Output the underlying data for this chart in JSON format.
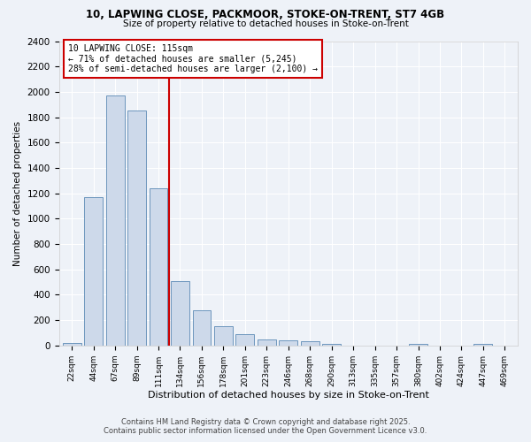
{
  "title1": "10, LAPWING CLOSE, PACKMOOR, STOKE-ON-TRENT, ST7 4GB",
  "title2": "Size of property relative to detached houses in Stoke-on-Trent",
  "xlabel": "Distribution of detached houses by size in Stoke-on-Trent",
  "ylabel": "Number of detached properties",
  "categories": [
    "22sqm",
    "44sqm",
    "67sqm",
    "89sqm",
    "111sqm",
    "134sqm",
    "156sqm",
    "178sqm",
    "201sqm",
    "223sqm",
    "246sqm",
    "268sqm",
    "290sqm",
    "313sqm",
    "335sqm",
    "357sqm",
    "380sqm",
    "402sqm",
    "424sqm",
    "447sqm",
    "469sqm"
  ],
  "values": [
    22,
    1170,
    1970,
    1850,
    1240,
    510,
    280,
    150,
    90,
    50,
    40,
    35,
    10,
    2,
    1,
    1,
    10,
    1,
    1,
    10,
    1
  ],
  "bar_color": "#cdd9ea",
  "bar_edge_color": "#5b8ab5",
  "vline_x": 4.5,
  "vline_color": "#cc0000",
  "annotation_text": "10 LAPWING CLOSE: 115sqm\n← 71% of detached houses are smaller (5,245)\n28% of semi-detached houses are larger (2,100) →",
  "annotation_box_color": "#ffffff",
  "annotation_box_edge": "#cc0000",
  "ylim": [
    0,
    2400
  ],
  "yticks": [
    0,
    200,
    400,
    600,
    800,
    1000,
    1200,
    1400,
    1600,
    1800,
    2000,
    2200,
    2400
  ],
  "bg_color": "#eef2f8",
  "grid_color": "#ffffff",
  "footer1": "Contains HM Land Registry data © Crown copyright and database right 2025.",
  "footer2": "Contains public sector information licensed under the Open Government Licence v3.0."
}
